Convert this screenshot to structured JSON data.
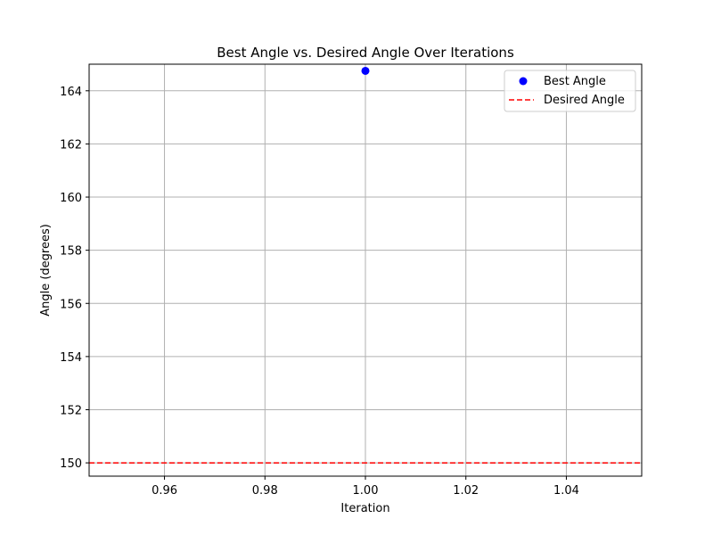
{
  "chart_data": {
    "type": "scatter",
    "title": "Best Angle vs. Desired Angle Over Iterations",
    "xlabel": "Iteration",
    "ylabel": "Angle (degrees)",
    "xlim": [
      0.945,
      1.055
    ],
    "ylim": [
      149.5,
      165.0
    ],
    "x_ticks": [
      0.96,
      0.98,
      1.0,
      1.02,
      1.04
    ],
    "x_tick_labels": [
      "0.96",
      "0.98",
      "1.00",
      "1.02",
      "1.04"
    ],
    "y_ticks": [
      150,
      152,
      154,
      156,
      158,
      160,
      162,
      164
    ],
    "y_tick_labels": [
      "150",
      "152",
      "154",
      "156",
      "158",
      "160",
      "162",
      "164"
    ],
    "grid": true,
    "legend_position": "top-right",
    "series": [
      {
        "name": "Best Angle",
        "kind": "scatter",
        "color": "#0000ff",
        "points": [
          {
            "x": 1.0,
            "y": 164.75
          }
        ]
      },
      {
        "name": "Desired Angle",
        "kind": "hline",
        "color": "#ff0000",
        "linestyle": "dashed",
        "y": 150
      }
    ]
  }
}
